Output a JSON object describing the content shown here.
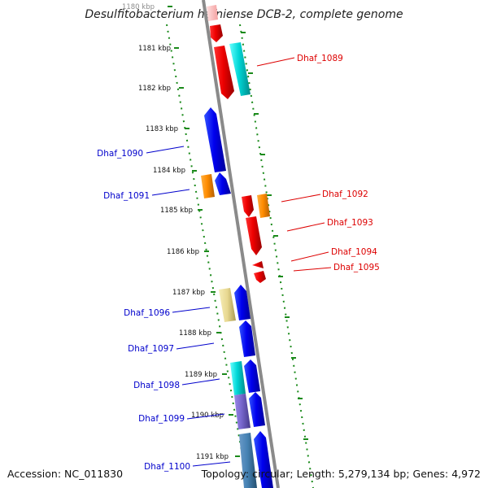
{
  "title": "Desulfitobacterium hafniense DCB-2, complete genome",
  "footer": {
    "accession": "Accession: NC_011830",
    "topology": "Topology: circular; Length: 5,279,134 bp; Genes: 4,972"
  },
  "colors": {
    "forward_label": "#0000cc",
    "reverse_label": "#dd0000",
    "backbone": "#8a8a8a",
    "tick": "#1a8a1a"
  },
  "kbp_labels": [
    "1180 kbp",
    "1181 kbp",
    "1182 kbp",
    "1183 kbp",
    "1184 kbp",
    "1185 kbp",
    "1186 kbp",
    "1187 kbp",
    "1188 kbp",
    "1189 kbp",
    "1190 kbp",
    "1191 kbp"
  ],
  "genes": [
    {
      "id": "Dhaf_1089",
      "strand": "reverse"
    },
    {
      "id": "Dhaf_1090",
      "strand": "forward"
    },
    {
      "id": "Dhaf_1091",
      "strand": "forward"
    },
    {
      "id": "Dhaf_1092",
      "strand": "reverse"
    },
    {
      "id": "Dhaf_1093",
      "strand": "reverse"
    },
    {
      "id": "Dhaf_1094",
      "strand": "reverse"
    },
    {
      "id": "Dhaf_1095",
      "strand": "reverse"
    },
    {
      "id": "Dhaf_1096",
      "strand": "forward"
    },
    {
      "id": "Dhaf_1097",
      "strand": "forward"
    },
    {
      "id": "Dhaf_1098",
      "strand": "forward"
    },
    {
      "id": "Dhaf_1099",
      "strand": "forward"
    },
    {
      "id": "Dhaf_1100",
      "strand": "forward"
    }
  ]
}
